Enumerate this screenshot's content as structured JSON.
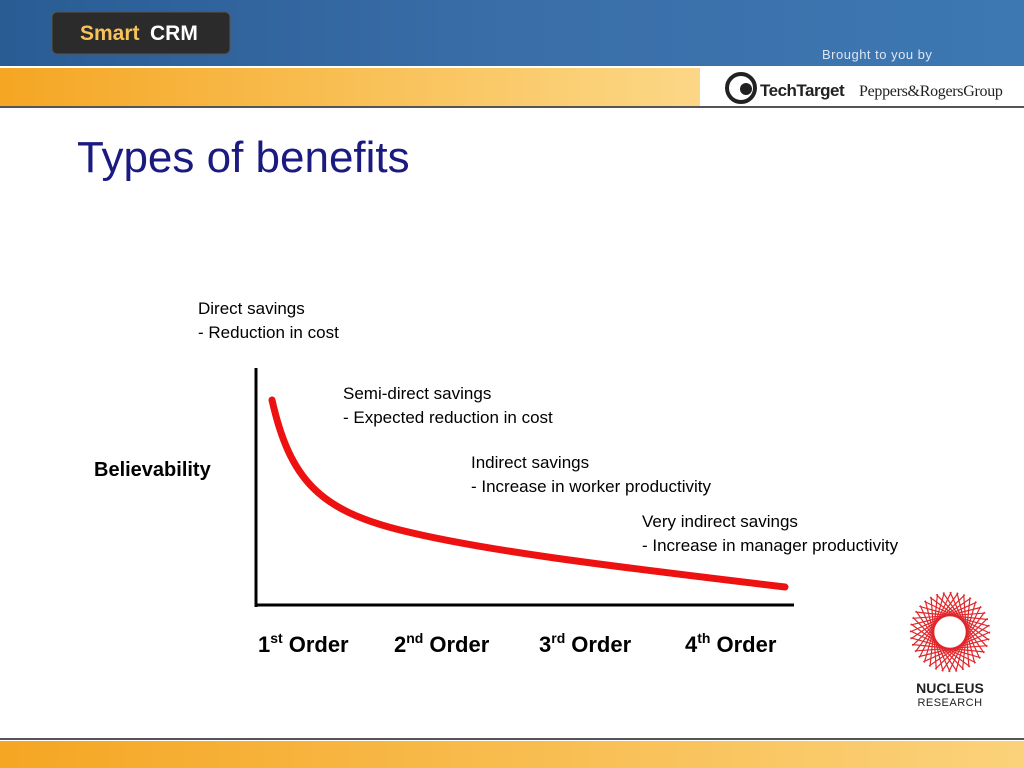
{
  "header": {
    "product_logo": {
      "first": "Smart",
      "second": "CRM"
    },
    "sponsor_note": "Brought to you by",
    "sponsors": [
      "TechTarget",
      "Peppers&RogersGroup"
    ]
  },
  "title": "Types of benefits",
  "diagram": {
    "y_label": "Believability",
    "annotations": [
      {
        "heading": "Direct savings",
        "detail": "- Reduction in cost"
      },
      {
        "heading": "Semi-direct savings",
        "detail": "- Expected reduction in cost"
      },
      {
        "heading": "Indirect savings",
        "detail": "- Increase in worker productivity"
      },
      {
        "heading": "Very indirect savings",
        "detail": "- Increase in manager productivity"
      }
    ],
    "x_labels": [
      {
        "number": "1",
        "suffix": "st",
        "word": "Order"
      },
      {
        "number": "2",
        "suffix": "nd",
        "word": "Order"
      },
      {
        "number": "3",
        "suffix": "rd",
        "word": "Order"
      },
      {
        "number": "4",
        "suffix": "th",
        "word": "Order"
      }
    ]
  },
  "footer_logo": {
    "line1": "NUCLEUS",
    "line2": "RESEARCH"
  }
}
